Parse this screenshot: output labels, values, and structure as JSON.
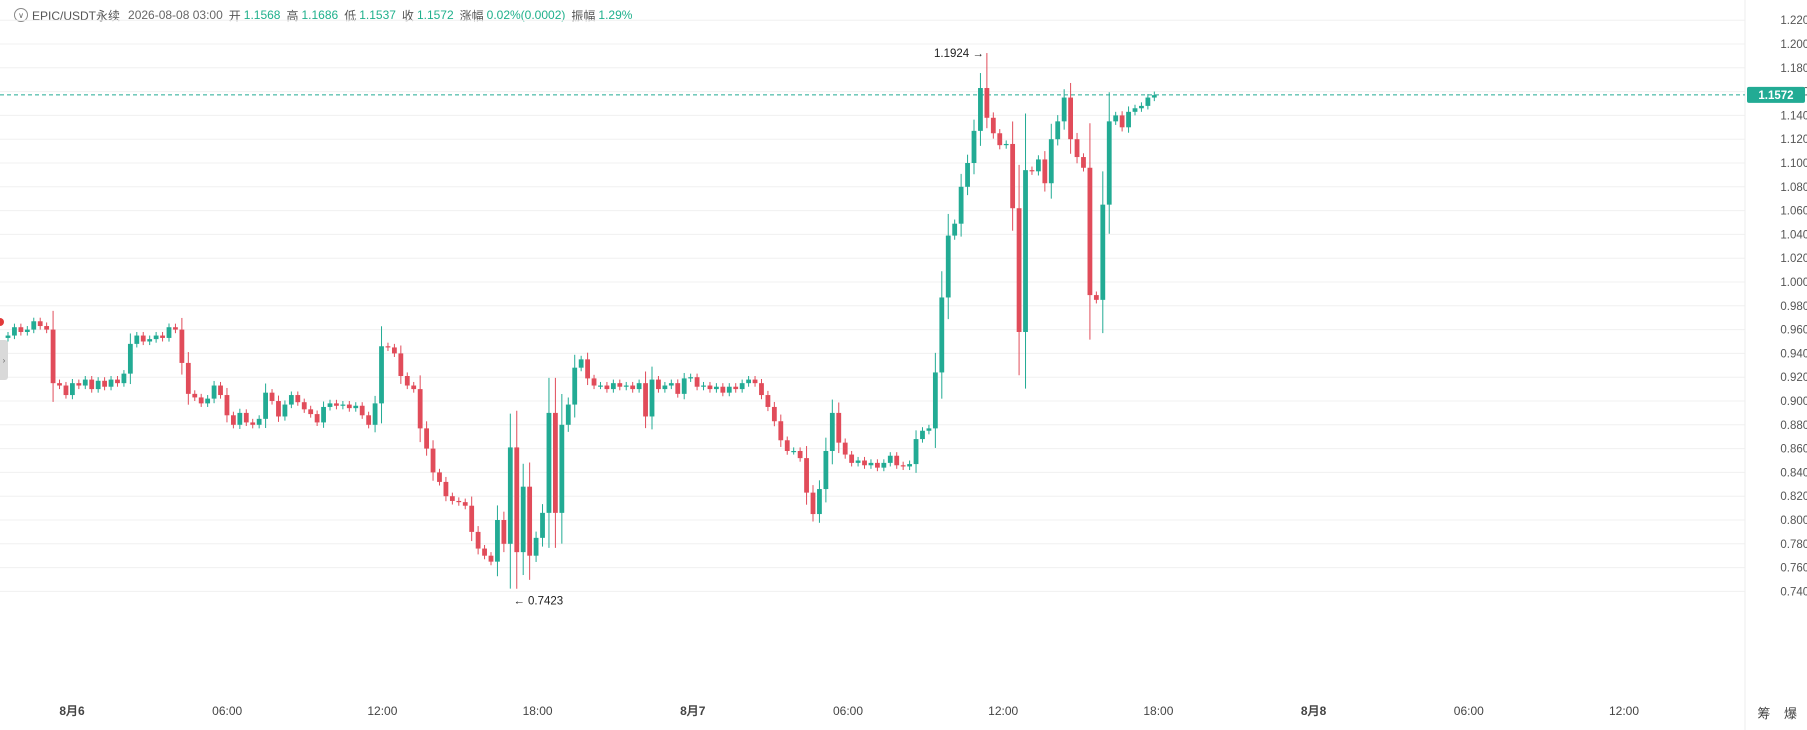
{
  "header": {
    "symbol": "EPIC/USDT永续",
    "datetime": "2026-08-08 03:00",
    "open_label": "开",
    "open": "1.1568",
    "high_label": "高",
    "high": "1.1686",
    "low_label": "低",
    "low": "1.1537",
    "close_label": "收",
    "close": "1.1572",
    "change_label": "涨幅",
    "change": "0.02%(0.0002)",
    "amp_label": "振幅",
    "amp": "1.29%"
  },
  "footer": {
    "btn1": "筹",
    "btn2": "爆"
  },
  "colors": {
    "up": "#22ab94",
    "down": "#e14c5a",
    "grid": "#f0f0f0",
    "axis_text": "#555555",
    "price_tag": "#22ab94"
  },
  "chart_data": {
    "type": "candlestick",
    "interval_hours": 1,
    "ylim": [
      0.73,
      1.23
    ],
    "y_ticks": [
      "1.2200",
      "1.2000",
      "1.1800",
      "1.1600",
      "1.1400",
      "1.1200",
      "1.1000",
      "1.0800",
      "1.0600",
      "1.0400",
      "1.0200",
      "1.0000",
      "0.9800",
      "0.9600",
      "0.9400",
      "0.9200",
      "0.9000",
      "0.8800",
      "0.8600",
      "0.8400",
      "0.8200",
      "0.8000",
      "0.7800",
      "0.7600",
      "0.7400"
    ],
    "x_ticks": [
      {
        "label": "8月6",
        "bold": true
      },
      {
        "label": "06:00",
        "bold": false
      },
      {
        "label": "12:00",
        "bold": false
      },
      {
        "label": "18:00",
        "bold": false
      },
      {
        "label": "8月7",
        "bold": true
      },
      {
        "label": "06:00",
        "bold": false
      },
      {
        "label": "12:00",
        "bold": false
      },
      {
        "label": "18:00",
        "bold": false
      },
      {
        "label": "8月8",
        "bold": true
      },
      {
        "label": "06:00",
        "bold": false
      },
      {
        "label": "12:00",
        "bold": false
      }
    ],
    "last_price": "1.1572",
    "max_label": "1.1924",
    "min_label": "0.7423",
    "closes": [
      0.955,
      0.962,
      0.958,
      0.96,
      0.967,
      0.963,
      0.96,
      0.915,
      0.913,
      0.905,
      0.915,
      0.913,
      0.918,
      0.91,
      0.917,
      0.912,
      0.918,
      0.915,
      0.923,
      0.948,
      0.955,
      0.95,
      0.952,
      0.955,
      0.953,
      0.962,
      0.96,
      0.932,
      0.906,
      0.903,
      0.898,
      0.902,
      0.913,
      0.905,
      0.888,
      0.88,
      0.89,
      0.882,
      0.88,
      0.885,
      0.907,
      0.9,
      0.887,
      0.897,
      0.905,
      0.899,
      0.893,
      0.889,
      0.882,
      0.895,
      0.898,
      0.896,
      0.897,
      0.894,
      0.896,
      0.888,
      0.88,
      0.898,
      0.946,
      0.945,
      0.94,
      0.921,
      0.913,
      0.91,
      0.877,
      0.86,
      0.84,
      0.832,
      0.82,
      0.816,
      0.815,
      0.812,
      0.79,
      0.776,
      0.77,
      0.765,
      0.8,
      0.78,
      0.861,
      0.773,
      0.828,
      0.77,
      0.785,
      0.806,
      0.89,
      0.806,
      0.88,
      0.897,
      0.928,
      0.935,
      0.919,
      0.913,
      0.913,
      0.91,
      0.915,
      0.912,
      0.913,
      0.91,
      0.915,
      0.887,
      0.918,
      0.91,
      0.913,
      0.915,
      0.906,
      0.919,
      0.92,
      0.912,
      0.913,
      0.91,
      0.912,
      0.907,
      0.912,
      0.91,
      0.915,
      0.918,
      0.915,
      0.905,
      0.895,
      0.883,
      0.867,
      0.858,
      0.858,
      0.852,
      0.823,
      0.805,
      0.826,
      0.858,
      0.89,
      0.865,
      0.855,
      0.848,
      0.85,
      0.846,
      0.848,
      0.844,
      0.848,
      0.854,
      0.846,
      0.845,
      0.847,
      0.868,
      0.875,
      0.877,
      0.924,
      0.987,
      1.039,
      1.049,
      1.08,
      1.1,
      1.127,
      1.163,
      1.138,
      1.125,
      1.115,
      1.116,
      1.062,
      0.958,
      1.094,
      1.093,
      1.103,
      1.083,
      1.12,
      1.135,
      1.155,
      1.12,
      1.105,
      1.096,
      0.989,
      0.985,
      1.065,
      1.135,
      1.14,
      1.13,
      1.143,
      1.146,
      1.148,
      1.155,
      1.157
    ],
    "annotations": [
      {
        "text": "1.1924 →",
        "bar": 152,
        "price": 1.1924,
        "side": "left"
      },
      {
        "text": "← 0.7423",
        "bar": 78,
        "price": 0.7423,
        "side": "right"
      }
    ]
  }
}
